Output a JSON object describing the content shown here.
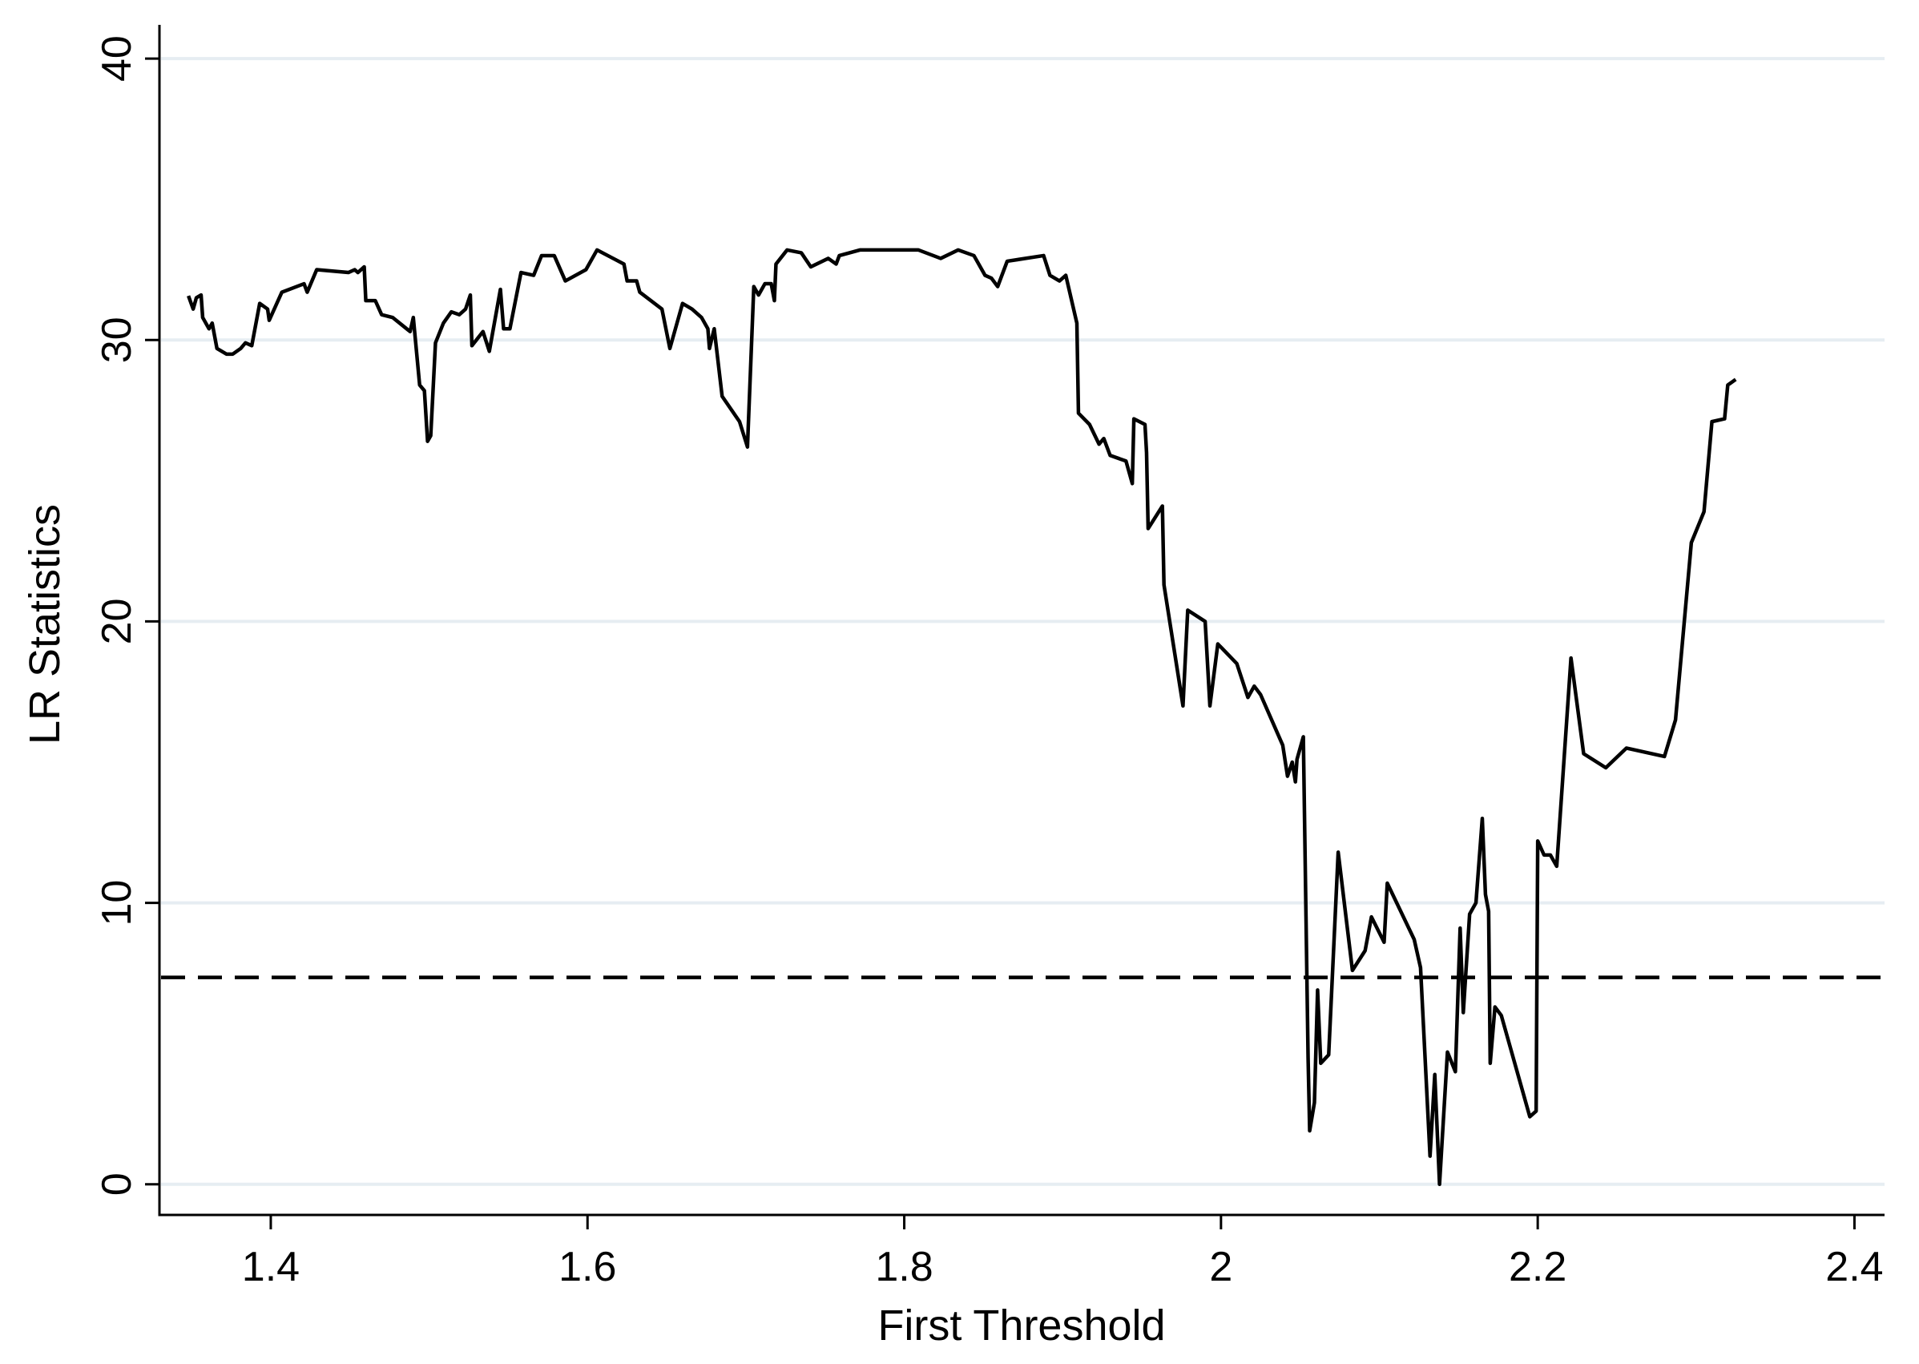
{
  "chart_data": {
    "type": "line",
    "x_label": "First Threshold",
    "y_label": "LR Statistics",
    "xlim": [
      1.3297,
      2.419
    ],
    "ylim": [
      -1.09,
      41.2
    ],
    "xticks": [
      1.4,
      1.6,
      1.8,
      2,
      2.2,
      2.4
    ],
    "yticks": [
      0,
      10,
      20,
      30,
      40
    ],
    "grid": true,
    "reference_line": 7.35,
    "series": [
      {
        "name": "LR",
        "color": "#000000",
        "x": [
          1.348,
          1.351,
          1.353,
          1.356,
          1.357,
          1.361,
          1.363,
          1.366,
          1.372,
          1.376,
          1.381,
          1.384,
          1.388,
          1.393,
          1.398,
          1.399,
          1.407,
          1.421,
          1.423,
          1.429,
          1.449,
          1.453,
          1.455,
          1.459,
          1.46,
          1.466,
          1.47,
          1.477,
          1.488,
          1.49,
          1.494,
          1.497,
          1.499,
          1.501,
          1.504,
          1.509,
          1.514,
          1.519,
          1.523,
          1.526,
          1.527,
          1.534,
          1.538,
          1.545,
          1.547,
          1.551,
          1.558,
          1.566,
          1.571,
          1.579,
          1.586,
          1.599,
          1.606,
          1.623,
          1.625,
          1.631,
          1.633,
          1.647,
          1.652,
          1.66,
          1.666,
          1.672,
          1.676,
          1.677,
          1.68,
          1.685,
          1.696,
          1.701,
          1.705,
          1.708,
          1.712,
          1.716,
          1.718,
          1.719,
          1.726,
          1.735,
          1.741,
          1.752,
          1.757,
          1.759,
          1.772,
          1.786,
          1.809,
          1.823,
          1.834,
          1.844,
          1.851,
          1.855,
          1.859,
          1.865,
          1.888,
          1.892,
          1.898,
          1.902,
          1.909,
          1.91,
          1.917,
          1.923,
          1.926,
          1.93,
          1.94,
          1.944,
          1.945,
          1.952,
          1.953,
          1.954,
          1.963,
          1.964,
          1.976,
          1.979,
          1.99,
          1.993,
          1.998,
          2.01,
          2.017,
          2.021,
          2.025,
          2.039,
          2.042,
          2.045,
          2.047,
          2.048,
          2.052,
          2.055,
          2.056,
          2.059,
          2.061,
          2.063,
          2.068,
          2.074,
          2.083,
          2.091,
          2.095,
          2.103,
          2.105,
          2.122,
          2.126,
          2.132,
          2.135,
          2.138,
          2.143,
          2.148,
          2.151,
          2.153,
          2.157,
          2.161,
          2.165,
          2.167,
          2.169,
          2.17,
          2.173,
          2.177,
          2.195,
          2.199,
          2.2,
          2.204,
          2.208,
          2.212,
          2.221,
          2.229,
          2.243,
          2.256,
          2.28,
          2.287,
          2.297,
          2.305,
          2.31,
          2.318,
          2.32,
          2.325
        ],
        "values": [
          31.57,
          31.1,
          31.5,
          31.6,
          30.8,
          30.4,
          30.6,
          29.7,
          29.5,
          29.5,
          29.7,
          29.9,
          29.8,
          31.3,
          31.1,
          30.7,
          31.7,
          32.0,
          31.7,
          32.5,
          32.4,
          32.5,
          32.4,
          32.6,
          31.4,
          31.4,
          30.9,
          30.8,
          30.3,
          30.8,
          28.4,
          28.2,
          26.4,
          26.6,
          29.9,
          30.6,
          31.0,
          30.9,
          31.1,
          31.6,
          29.8,
          30.3,
          29.6,
          31.8,
          30.4,
          30.4,
          32.4,
          32.3,
          33.0,
          33.0,
          32.1,
          32.5,
          33.2,
          32.7,
          32.1,
          32.1,
          31.7,
          31.1,
          29.7,
          31.3,
          31.1,
          30.8,
          30.4,
          29.7,
          30.4,
          28.0,
          27.1,
          26.2,
          31.9,
          31.6,
          32.0,
          32.0,
          31.4,
          32.7,
          33.2,
          33.1,
          32.6,
          32.9,
          32.7,
          33.0,
          33.2,
          33.2,
          33.2,
          32.9,
          33.2,
          33.0,
          32.3,
          32.2,
          31.9,
          32.8,
          33.0,
          32.3,
          32.1,
          32.3,
          30.6,
          27.4,
          27.0,
          26.3,
          26.5,
          25.9,
          25.7,
          24.9,
          27.2,
          27.0,
          26.0,
          23.3,
          24.1,
          21.3,
          17.0,
          20.4,
          20.0,
          17.0,
          19.2,
          18.5,
          17.3,
          17.7,
          17.4,
          15.6,
          14.5,
          15.0,
          14.3,
          15.1,
          15.9,
          4.5,
          1.9,
          2.9,
          6.9,
          4.3,
          4.6,
          11.8,
          7.6,
          8.3,
          9.5,
          8.6,
          10.7,
          8.7,
          7.7,
          1.0,
          3.9,
          0,
          4.7,
          4.0,
          9.1,
          6.1,
          9.6,
          10.0,
          13.0,
          10.3,
          9.7,
          4.3,
          6.3,
          6.0,
          2.4,
          2.6,
          12.2,
          11.7,
          11.7,
          11.3,
          18.7,
          15.3,
          14.8,
          15.5,
          15.2,
          16.5,
          22.8,
          23.9,
          27.1,
          27.2,
          28.4,
          28.6
        ]
      }
    ]
  }
}
